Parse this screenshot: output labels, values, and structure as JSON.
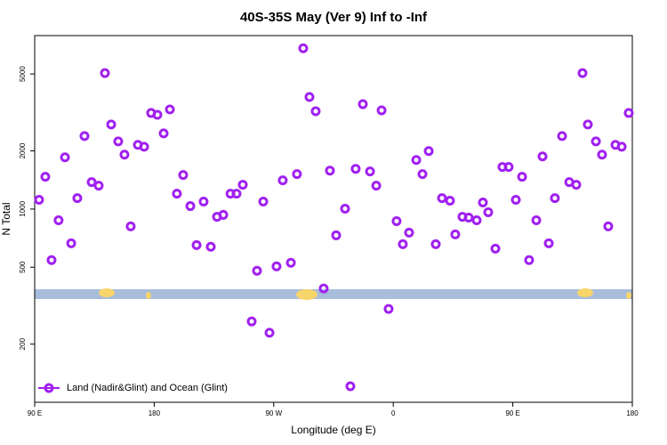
{
  "chart_data": {
    "type": "scatter",
    "title": "40S-35S May (Ver 9)   Inf to -Inf",
    "x_label": "Longitude (deg E)",
    "y_label": "N Total",
    "yscale": "log",
    "legend": "bottom-left",
    "xlim": [
      90,
      540
    ],
    "xticks": [
      {
        "value": 90,
        "label": "90 E"
      },
      {
        "value": 180,
        "label": "180"
      },
      {
        "value": 270,
        "label": "90 W"
      },
      {
        "value": 360,
        "label": "0"
      },
      {
        "value": 450,
        "label": "90 E"
      },
      {
        "value": 540,
        "label": "180"
      }
    ],
    "ylim": [
      100,
      7900
    ],
    "yticks": [
      200,
      500,
      1000,
      2000,
      5000
    ],
    "series": [
      {
        "name": "Land (Nadir&Glint) and Ocean (Glint)",
        "color": "#a020f0",
        "x": [
          93.3,
          98,
          102.7,
          108,
          112.8,
          117.5,
          122.1,
          127.5,
          132.9,
          138.2,
          142.9,
          147.6,
          152.9,
          157.6,
          162.3,
          167.7,
          172.4,
          177.7,
          182.4,
          187.1,
          191.8,
          197.1,
          201.8,
          207.2,
          211.9,
          217.2,
          222.6,
          227.3,
          232,
          237.4,
          242,
          246.7,
          253.4,
          257.4,
          262.1,
          266.8,
          272.1,
          276.8,
          282.9,
          287.5,
          292.2,
          296.9,
          301.6,
          307.6,
          312.3,
          317,
          323.7,
          327.7,
          331.7,
          337.1,
          342.5,
          347.2,
          351.2,
          356.5,
          362.5,
          367.2,
          371.9,
          377.3,
          382,
          386.7,
          392,
          396.7,
          402.7,
          406.7,
          412.1,
          416.8,
          422.8,
          427.5,
          431.5,
          436.9,
          442.2,
          446.9,
          452.3,
          457,
          462.3,
          467.7,
          472.4,
          477.1,
          481.7,
          487.1,
          492.5,
          497.8,
          502.5,
          506.5,
          512.6,
          517.2,
          521.9,
          527.3,
          532,
          537.3
        ],
        "values": [
          1116,
          1469,
          544,
          875,
          1853,
          665,
          1139,
          2386,
          1379,
          1321,
          5053,
          2738,
          2240,
          1912,
          813,
          2148,
          2102,
          3142,
          3076,
          2463,
          3277,
          1201,
          1500,
          1036,
          651,
          1093,
          638,
          912,
          933,
          1201,
          1201,
          1336,
          262,
          479,
          1093,
          229,
          505,
          1408,
          527,
          1516,
          6793,
          3801,
          3209,
          388,
          1581,
          731,
          1004,
          121,
          1615,
          3489,
          1565,
          1321,
          3243,
          304,
          866,
          658,
          755,
          1795,
          1516,
          1995,
          658,
          1139,
          1105,
          739,
          912,
          903,
          875,
          1081,
          962,
          624,
          1650,
          1650,
          1116,
          1469,
          544,
          875,
          1872,
          665,
          1139,
          2386,
          1379,
          1336,
          5053,
          2738,
          2240,
          1912,
          813,
          2148,
          2102,
          3142
        ]
      }
    ]
  }
}
